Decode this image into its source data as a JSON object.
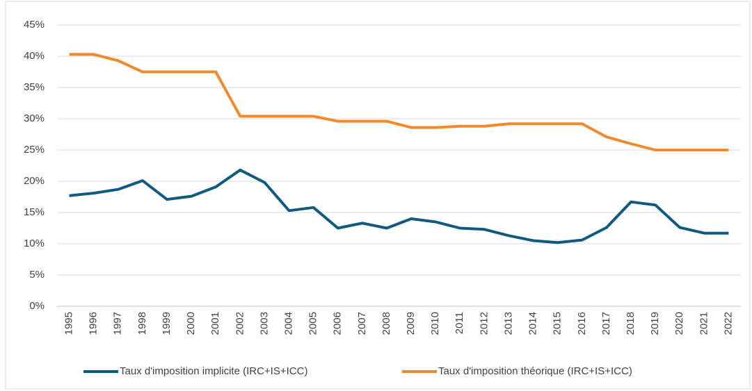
{
  "chart_data": {
    "type": "line",
    "categories": [
      "1995",
      "1996",
      "1997",
      "1998",
      "1999",
      "2000",
      "2001",
      "2002",
      "2003",
      "2004",
      "2005",
      "2006",
      "2007",
      "2008",
      "2009",
      "2010",
      "2011",
      "2012",
      "2013",
      "2014",
      "2015",
      "2016",
      "2017",
      "2018",
      "2019",
      "2020",
      "2021",
      "2022"
    ],
    "series": [
      {
        "name": "Taux d'imposition implicite (IRC+IS+ICC)",
        "color": "#0e5a80",
        "values": [
          17.7,
          18.1,
          18.7,
          20.1,
          17.1,
          17.6,
          19.1,
          21.8,
          19.8,
          15.3,
          15.8,
          12.5,
          13.3,
          12.5,
          14.0,
          13.5,
          12.5,
          12.3,
          11.3,
          10.5,
          10.2,
          10.6,
          12.6,
          16.7,
          16.2,
          12.6,
          11.7,
          11.7
        ]
      },
      {
        "name": "Taux d'imposition théorique (IRC+IS+ICC)",
        "color": "#f08a2c",
        "values": [
          40.3,
          40.3,
          39.3,
          37.5,
          37.5,
          37.5,
          37.5,
          30.4,
          30.4,
          30.4,
          30.4,
          29.6,
          29.6,
          29.6,
          28.6,
          28.6,
          28.8,
          28.8,
          29.2,
          29.2,
          29.2,
          29.2,
          27.1,
          26.0,
          25.0,
          25.0,
          25.0,
          25.0
        ]
      }
    ],
    "ylim": [
      0,
      45
    ],
    "yticks": [
      {
        "value": 0,
        "label": "0%"
      },
      {
        "value": 5,
        "label": "5%"
      },
      {
        "value": 10,
        "label": "10%"
      },
      {
        "value": 15,
        "label": "15%"
      },
      {
        "value": 20,
        "label": "20%"
      },
      {
        "value": 25,
        "label": "25%"
      },
      {
        "value": 30,
        "label": "30%"
      },
      {
        "value": 35,
        "label": "35%"
      },
      {
        "value": 40,
        "label": "40%"
      },
      {
        "value": 45,
        "label": "45%"
      }
    ],
    "grid": true
  }
}
